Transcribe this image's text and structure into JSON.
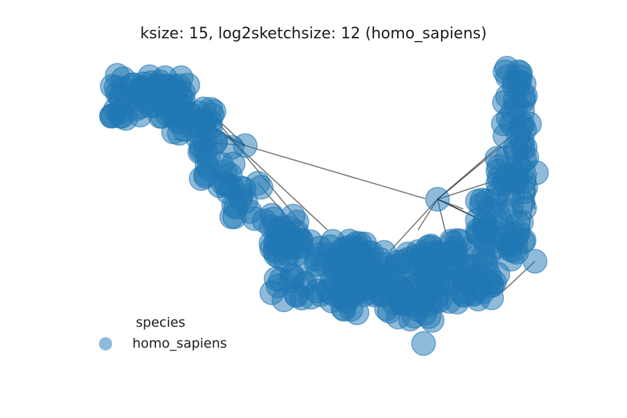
{
  "title": "ksize: 15, log2sketchsize: 12 (homo_sapiens)",
  "legend": {
    "title": "species",
    "entries": [
      {
        "label": "homo_sapiens",
        "color": "#1f77b4"
      }
    ]
  },
  "node_color": "#1f77b4",
  "edge_color": "#000000"
}
